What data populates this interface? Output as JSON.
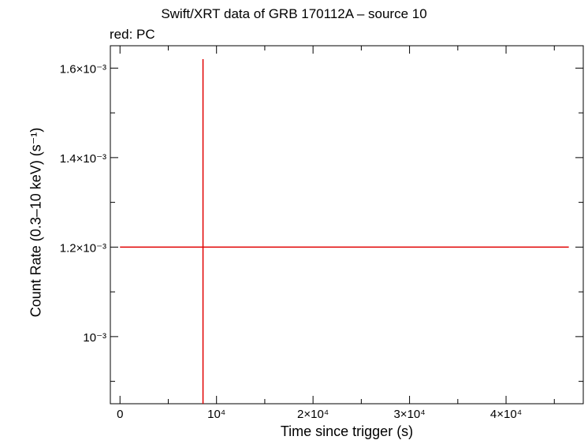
{
  "chart_data": {
    "type": "scatter",
    "title": "Swift/XRT data of GRB 170112A – source 10",
    "subtitle": "red: PC",
    "xlabel": "Time since trigger (s)",
    "ylabel": "Count Rate (0.3–10 keV) (s⁻¹)",
    "xlim": [
      -1000,
      48000
    ],
    "ylim": [
      0.00085,
      0.00165
    ],
    "x_ticks": [
      {
        "value": 0,
        "label": "0"
      },
      {
        "value": 10000,
        "label": "10⁴"
      },
      {
        "value": 20000,
        "label": "2×10⁴"
      },
      {
        "value": 30000,
        "label": "3×10⁴"
      },
      {
        "value": 40000,
        "label": "4×10⁴"
      }
    ],
    "y_ticks": [
      {
        "value": 0.001,
        "label": "10⁻³"
      },
      {
        "value": 0.0012,
        "label": "1.2×10⁻³"
      },
      {
        "value": 0.0014,
        "label": "1.4×10⁻³"
      },
      {
        "value": 0.0016,
        "label": "1.6×10⁻³"
      }
    ],
    "series": [
      {
        "name": "PC",
        "color": "#e00000",
        "points": [
          {
            "x": 8600,
            "x_lo": 0,
            "x_hi": 46500,
            "y": 0.0012,
            "y_lo": 0.00085,
            "y_hi": 0.00162
          }
        ]
      }
    ]
  }
}
